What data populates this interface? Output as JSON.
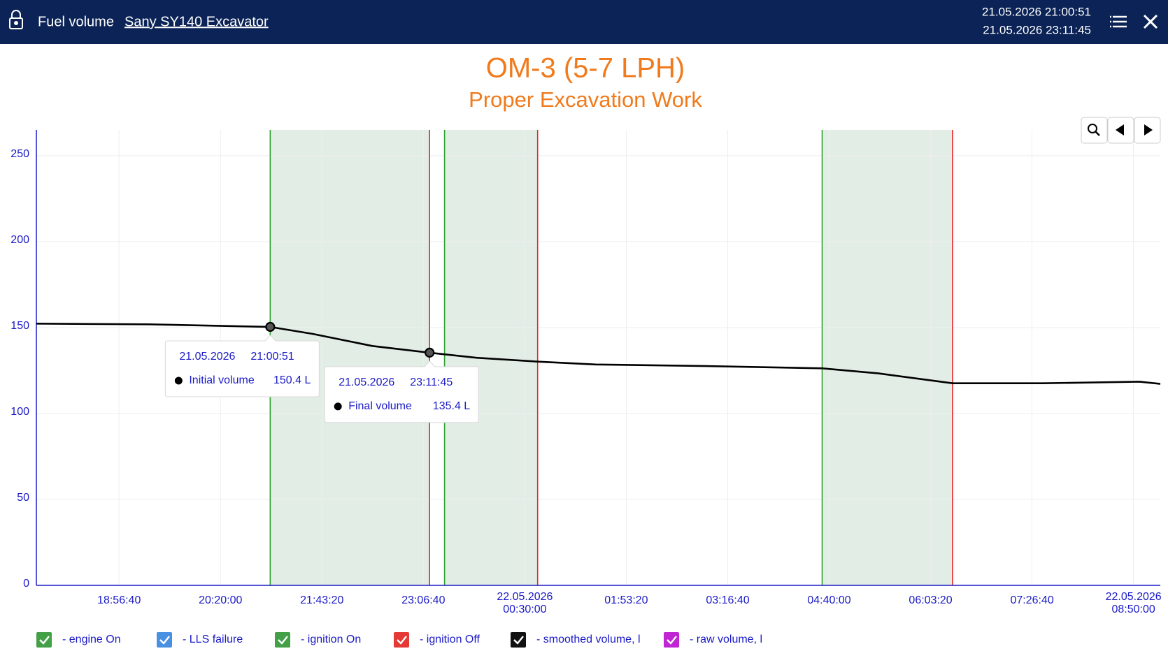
{
  "header": {
    "title": "Fuel volume",
    "vehicle": "Sany SY140 Excavator",
    "period_start": "21.05.2026 21:00:51",
    "period_end": "21.05.2026 23:11:45"
  },
  "chart_data": {
    "type": "line",
    "title": "OM-3 (5-7 LPH)",
    "subtitle": "Proper Excavation Work",
    "xlim": [
      "2026-05-21 17:48:45",
      "2026-05-22 09:12:02"
    ],
    "xticks": [
      {
        "value": "2026-05-21 18:56:40",
        "label": "18:56:40"
      },
      {
        "value": "2026-05-21 20:20:00",
        "label": "20:20:00"
      },
      {
        "value": "2026-05-21 21:43:20",
        "label": "21:43:20"
      },
      {
        "value": "2026-05-21 23:06:40",
        "label": "23:06:40"
      },
      {
        "value": "2026-05-22 00:30:00",
        "label": [
          "22.05.2026",
          "00:30:00"
        ]
      },
      {
        "value": "2026-05-22 01:53:20",
        "label": "01:53:20"
      },
      {
        "value": "2026-05-22 03:16:40",
        "label": "03:16:40"
      },
      {
        "value": "2026-05-22 04:40:00",
        "label": "04:40:00"
      },
      {
        "value": "2026-05-22 06:03:20",
        "label": "06:03:20"
      },
      {
        "value": "2026-05-22 07:26:40",
        "label": "07:26:40"
      },
      {
        "value": "2026-05-22 08:50:00",
        "label": [
          "22.05.2026",
          "08:50:00"
        ]
      }
    ],
    "ylim": [
      0,
      265
    ],
    "yticks": [
      0,
      50,
      100,
      150,
      200,
      250
    ],
    "grid": true,
    "series": [
      {
        "color": "#000000",
        "x": [
          "2026-05-21 17:48:45",
          "2026-05-21 19:21:08",
          "2026-05-21 21:00:51",
          "2026-05-21 21:35:45",
          "2026-05-21 22:24:42",
          "2026-05-21 23:11:45",
          "2026-05-21 23:50:21",
          "2026-05-22 00:40:31",
          "2026-05-22 01:28:15",
          "2026-05-22 02:59:21",
          "2026-05-22 04:34:15",
          "2026-05-22 05:20:45",
          "2026-05-22 06:21:19",
          "2026-05-22 07:35:21",
          "2026-05-22 08:54:54",
          "2026-05-22 09:12:02"
        ],
        "values": [
          152.3,
          151.9,
          150.4,
          146.3,
          139.3,
          135.4,
          132.4,
          130.2,
          128.5,
          127.6,
          126.3,
          123.3,
          117.6,
          117.6,
          118.5,
          117.2
        ]
      }
    ],
    "ignition_intervals": [
      {
        "start": "2026-05-21 21:00:51",
        "end": "2026-05-21 23:11:45"
      },
      {
        "start": "2026-05-21 23:24:03",
        "end": "2026-05-22 00:40:31"
      },
      {
        "start": "2026-05-22 04:34:15",
        "end": "2026-05-22 06:21:19"
      }
    ],
    "on_color": "#2ca02c",
    "off_color": "#e8262a",
    "shade_color": "#e2eee5",
    "markers": [
      {
        "x": "2026-05-21 21:00:51",
        "value": 150.4,
        "date": "21.05.2026",
        "time": "21:00:51",
        "label": "Initial volume",
        "value_label": "150.4 L"
      },
      {
        "x": "2026-05-21 23:11:45",
        "value": 135.4,
        "date": "21.05.2026",
        "time": "23:11:45",
        "label": "Final volume",
        "value_label": "135.4 L"
      }
    ],
    "legend": [
      {
        "name": "- engine On",
        "color": "#43a047"
      },
      {
        "name": "- LLS failure",
        "color": "#4a90e2"
      },
      {
        "name": "- ignition On",
        "color": "#43a047"
      },
      {
        "name": "- ignition Off",
        "color": "#e53935"
      },
      {
        "name": "- smoothed volume, l",
        "color": "#111111"
      },
      {
        "name": "- raw volume, l",
        "color": "#c026d3"
      }
    ]
  }
}
